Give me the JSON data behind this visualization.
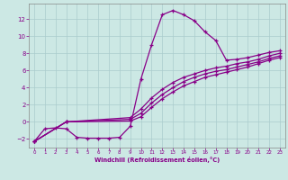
{
  "xlabel": "Windchill (Refroidissement éolien,°C)",
  "bg_color": "#cce8e4",
  "line_color": "#880088",
  "grid_color": "#aacccc",
  "xlim": [
    -0.5,
    23.5
  ],
  "ylim": [
    -3.0,
    13.8
  ],
  "xticks": [
    0,
    1,
    2,
    3,
    4,
    5,
    6,
    7,
    8,
    9,
    10,
    11,
    12,
    13,
    14,
    15,
    16,
    17,
    18,
    19,
    20,
    21,
    22,
    23
  ],
  "yticks": [
    -2,
    0,
    2,
    4,
    6,
    8,
    10,
    12
  ],
  "curve1_x": [
    0,
    1,
    2,
    3,
    4,
    5,
    6,
    7,
    8,
    9,
    10,
    11,
    12,
    13,
    14,
    15,
    16,
    17,
    18,
    19,
    20,
    21,
    22,
    23
  ],
  "curve1_y": [
    -2.3,
    -0.8,
    -0.7,
    -0.8,
    -1.8,
    -1.9,
    -1.9,
    -1.9,
    -1.8,
    -0.5,
    5.0,
    9.0,
    12.5,
    13.0,
    12.5,
    11.8,
    10.5,
    9.5,
    7.2,
    7.3,
    7.5,
    7.8,
    8.1,
    8.3
  ],
  "curve2_x": [
    0,
    3,
    9,
    10,
    11,
    12,
    13,
    14,
    15,
    16,
    17,
    18,
    19,
    20,
    21,
    22,
    23
  ],
  "curve2_y": [
    -2.3,
    0.0,
    0.5,
    1.5,
    2.8,
    3.8,
    4.6,
    5.2,
    5.6,
    6.0,
    6.3,
    6.5,
    6.8,
    7.0,
    7.3,
    7.7,
    8.0
  ],
  "curve3_x": [
    0,
    3,
    9,
    10,
    11,
    12,
    13,
    14,
    15,
    16,
    17,
    18,
    19,
    20,
    21,
    22,
    23
  ],
  "curve3_y": [
    -2.3,
    0.0,
    0.3,
    1.0,
    2.2,
    3.2,
    4.0,
    4.7,
    5.2,
    5.6,
    5.9,
    6.1,
    6.4,
    6.7,
    7.0,
    7.4,
    7.7
  ],
  "curve4_x": [
    0,
    3,
    9,
    10,
    11,
    12,
    13,
    14,
    15,
    16,
    17,
    18,
    19,
    20,
    21,
    22,
    23
  ],
  "curve4_y": [
    -2.3,
    0.0,
    0.1,
    0.6,
    1.7,
    2.7,
    3.5,
    4.2,
    4.7,
    5.2,
    5.5,
    5.8,
    6.1,
    6.4,
    6.8,
    7.2,
    7.5
  ]
}
